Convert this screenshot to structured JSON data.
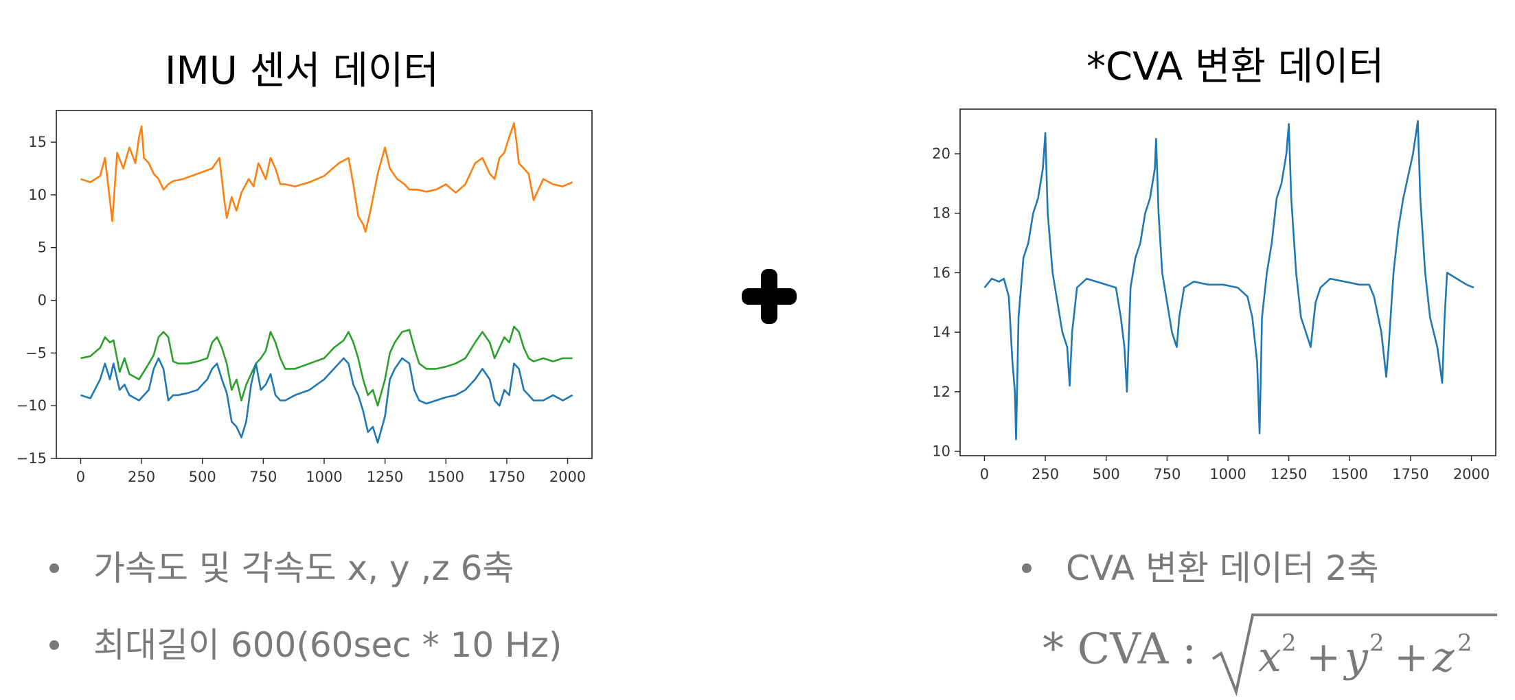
{
  "titles": {
    "left": "IMU 센서 데이터",
    "right": "*CVA 변환 데이터"
  },
  "plus_icon": "plus-icon",
  "bullets": {
    "left": [
      "가속도 및 각속도 x, y ,z  6축",
      "최대길이 600(60sec * 10 Hz)"
    ],
    "right": [
      "CVA 변환 데이터 2축"
    ]
  },
  "formula": {
    "prefix": "* CVA :",
    "expression": "√(x² + y² + z²)"
  },
  "chart_data": [
    {
      "type": "line",
      "title": "",
      "xlabel": "",
      "ylabel": "",
      "xlim": [
        -100,
        2100
      ],
      "ylim": [
        -15,
        18
      ],
      "x_ticks": [
        0,
        250,
        500,
        750,
        1000,
        1250,
        1500,
        1750,
        2000
      ],
      "x_tick_labels": [
        "0",
        "250",
        "500",
        "750",
        "1000",
        "1250",
        "1500",
        "1750",
        "2000"
      ],
      "y_ticks": [
        15,
        10,
        5,
        0,
        -5,
        -10,
        -15
      ],
      "y_tick_labels": [
        "15",
        "10",
        "5",
        "0",
        "−5",
        "−10",
        "−15"
      ],
      "grid": false,
      "series": [
        {
          "color": "#ff7f0e",
          "x": [
            0,
            40,
            80,
            100,
            120,
            130,
            150,
            175,
            200,
            225,
            240,
            250,
            260,
            280,
            300,
            320,
            340,
            360,
            380,
            420,
            480,
            540,
            570,
            590,
            600,
            620,
            640,
            660,
            690,
            710,
            730,
            760,
            780,
            800,
            820,
            840,
            880,
            940,
            1000,
            1060,
            1100,
            1120,
            1140,
            1160,
            1170,
            1190,
            1220,
            1250,
            1270,
            1300,
            1330,
            1350,
            1380,
            1420,
            1460,
            1500,
            1540,
            1580,
            1620,
            1650,
            1680,
            1700,
            1720,
            1740,
            1760,
            1780,
            1790,
            1800,
            1820,
            1840,
            1860,
            1880,
            1900,
            1940,
            1980,
            2020
          ],
          "y": [
            11.5,
            11.2,
            11.8,
            13.5,
            9.5,
            7.5,
            14.0,
            12.5,
            14.5,
            13.0,
            15.5,
            16.5,
            13.5,
            13.0,
            12.0,
            11.5,
            10.5,
            11.0,
            11.3,
            11.5,
            12.0,
            12.5,
            13.5,
            9.5,
            7.8,
            9.8,
            8.5,
            10.2,
            11.5,
            10.8,
            13.0,
            11.5,
            13.5,
            12.5,
            11.0,
            11.0,
            10.8,
            11.2,
            11.8,
            13.0,
            13.5,
            11.0,
            8.0,
            7.2,
            6.5,
            8.5,
            12.0,
            14.5,
            12.5,
            11.5,
            11.0,
            10.5,
            10.5,
            10.3,
            10.5,
            11.0,
            10.2,
            11.0,
            13.0,
            13.5,
            12.0,
            11.5,
            13.5,
            14.0,
            15.5,
            16.8,
            15.0,
            13.0,
            12.5,
            12.0,
            9.5,
            10.5,
            11.5,
            11.0,
            10.8,
            11.2
          ]
        },
        {
          "color": "#2ca02c",
          "x": [
            0,
            40,
            80,
            100,
            120,
            135,
            160,
            180,
            200,
            240,
            280,
            300,
            320,
            340,
            360,
            380,
            400,
            440,
            480,
            520,
            540,
            560,
            580,
            600,
            620,
            640,
            660,
            680,
            700,
            720,
            740,
            760,
            780,
            800,
            820,
            840,
            880,
            940,
            1000,
            1040,
            1080,
            1100,
            1120,
            1140,
            1160,
            1180,
            1200,
            1220,
            1250,
            1270,
            1290,
            1320,
            1350,
            1370,
            1390,
            1420,
            1460,
            1500,
            1540,
            1580,
            1620,
            1650,
            1680,
            1700,
            1720,
            1740,
            1760,
            1780,
            1800,
            1820,
            1840,
            1860,
            1900,
            1940,
            1980,
            2020
          ],
          "y": [
            -5.5,
            -5.3,
            -4.5,
            -3.5,
            -4.0,
            -3.8,
            -6.8,
            -5.5,
            -7.0,
            -7.5,
            -6.0,
            -5.2,
            -3.5,
            -3.0,
            -3.5,
            -5.8,
            -6.0,
            -6.0,
            -5.8,
            -5.5,
            -4.0,
            -3.5,
            -4.5,
            -6.0,
            -8.5,
            -7.5,
            -9.5,
            -8.0,
            -7.0,
            -6.0,
            -5.5,
            -4.8,
            -3.0,
            -4.0,
            -5.5,
            -6.5,
            -6.5,
            -6.0,
            -5.5,
            -4.5,
            -3.8,
            -3.0,
            -4.0,
            -5.5,
            -7.5,
            -9.0,
            -8.5,
            -10.0,
            -7.5,
            -5.0,
            -4.0,
            -3.0,
            -2.8,
            -4.5,
            -6.0,
            -6.5,
            -6.5,
            -6.3,
            -6.0,
            -5.5,
            -4.0,
            -3.0,
            -4.0,
            -5.5,
            -4.5,
            -3.5,
            -4.0,
            -2.5,
            -3.0,
            -4.5,
            -5.5,
            -5.8,
            -5.5,
            -5.8,
            -5.5,
            -5.5
          ]
        },
        {
          "color": "#1f77b4",
          "x": [
            0,
            40,
            80,
            100,
            120,
            135,
            160,
            180,
            200,
            240,
            280,
            300,
            320,
            340,
            360,
            380,
            400,
            440,
            480,
            520,
            540,
            560,
            580,
            600,
            620,
            640,
            660,
            680,
            700,
            720,
            740,
            760,
            780,
            800,
            820,
            840,
            880,
            940,
            1000,
            1040,
            1080,
            1100,
            1120,
            1140,
            1160,
            1180,
            1200,
            1220,
            1250,
            1270,
            1290,
            1320,
            1350,
            1370,
            1390,
            1420,
            1460,
            1500,
            1540,
            1580,
            1620,
            1650,
            1680,
            1700,
            1720,
            1740,
            1760,
            1780,
            1800,
            1820,
            1840,
            1860,
            1900,
            1940,
            1980,
            2020
          ],
          "y": [
            -9.0,
            -9.3,
            -7.5,
            -6.0,
            -7.5,
            -6.0,
            -8.5,
            -8.0,
            -9.0,
            -9.5,
            -8.5,
            -6.5,
            -5.5,
            -6.5,
            -9.5,
            -9.0,
            -9.0,
            -8.8,
            -8.5,
            -7.5,
            -6.5,
            -6.0,
            -7.5,
            -8.8,
            -11.5,
            -12.0,
            -13.0,
            -11.5,
            -8.0,
            -6.0,
            -8.5,
            -8.0,
            -7.0,
            -9.0,
            -9.5,
            -9.5,
            -9.0,
            -8.5,
            -7.5,
            -6.5,
            -5.5,
            -6.0,
            -8.0,
            -9.0,
            -10.5,
            -12.5,
            -12.0,
            -13.5,
            -11.0,
            -7.5,
            -6.5,
            -5.5,
            -6.0,
            -8.5,
            -9.5,
            -9.8,
            -9.5,
            -9.2,
            -9.0,
            -8.5,
            -7.5,
            -6.5,
            -7.5,
            -9.5,
            -10.0,
            -8.5,
            -9.0,
            -6.0,
            -6.5,
            -8.5,
            -9.0,
            -9.5,
            -9.5,
            -9.0,
            -9.5,
            -9.0
          ]
        }
      ]
    },
    {
      "type": "line",
      "title": "",
      "xlabel": "",
      "ylabel": "",
      "xlim": [
        -100,
        2100
      ],
      "ylim": [
        9.85,
        21.5
      ],
      "x_ticks": [
        0,
        250,
        500,
        750,
        1000,
        1250,
        1500,
        1750,
        2000
      ],
      "x_tick_labels": [
        "0",
        "250",
        "500",
        "750",
        "1000",
        "1250",
        "1500",
        "1750",
        "2000"
      ],
      "y_ticks": [
        20,
        18,
        16,
        14,
        12,
        10
      ],
      "y_tick_labels": [
        "20",
        "18",
        "16",
        "14",
        "12",
        "10"
      ],
      "grid": false,
      "series": [
        {
          "color": "#1f77b4",
          "x": [
            0,
            30,
            60,
            80,
            100,
            115,
            125,
            130,
            140,
            160,
            180,
            200,
            220,
            240,
            250,
            260,
            280,
            300,
            320,
            340,
            350,
            360,
            380,
            420,
            460,
            500,
            540,
            560,
            575,
            585,
            600,
            620,
            640,
            660,
            680,
            700,
            705,
            715,
            730,
            750,
            770,
            790,
            800,
            820,
            860,
            920,
            980,
            1040,
            1080,
            1100,
            1120,
            1130,
            1140,
            1160,
            1180,
            1200,
            1220,
            1240,
            1250,
            1260,
            1280,
            1300,
            1320,
            1340,
            1360,
            1380,
            1420,
            1480,
            1540,
            1580,
            1600,
            1630,
            1650,
            1660,
            1680,
            1700,
            1720,
            1760,
            1780,
            1790,
            1810,
            1830,
            1860,
            1880,
            1890,
            1900,
            1940,
            1980,
            2010
          ],
          "y": [
            15.5,
            15.8,
            15.7,
            15.8,
            15.2,
            13.0,
            12.0,
            10.4,
            14.5,
            16.5,
            17.0,
            18.0,
            18.5,
            19.5,
            20.7,
            18.0,
            16.0,
            15.0,
            14.0,
            13.5,
            12.2,
            14.0,
            15.5,
            15.8,
            15.7,
            15.6,
            15.5,
            14.5,
            13.5,
            12.0,
            15.5,
            16.5,
            17.0,
            18.0,
            18.5,
            19.5,
            20.5,
            18.0,
            16.0,
            15.0,
            14.0,
            13.5,
            14.5,
            15.5,
            15.7,
            15.6,
            15.6,
            15.5,
            15.2,
            14.5,
            13.0,
            10.6,
            14.5,
            16.0,
            17.0,
            18.5,
            19.0,
            20.0,
            21.0,
            18.5,
            16.0,
            14.5,
            14.0,
            13.5,
            15.0,
            15.5,
            15.8,
            15.7,
            15.6,
            15.6,
            15.2,
            14.0,
            12.5,
            13.5,
            16.0,
            17.5,
            18.5,
            20.0,
            21.1,
            18.5,
            16.0,
            14.5,
            13.5,
            12.3,
            14.5,
            16.0,
            15.8,
            15.6,
            15.5
          ]
        }
      ]
    }
  ]
}
